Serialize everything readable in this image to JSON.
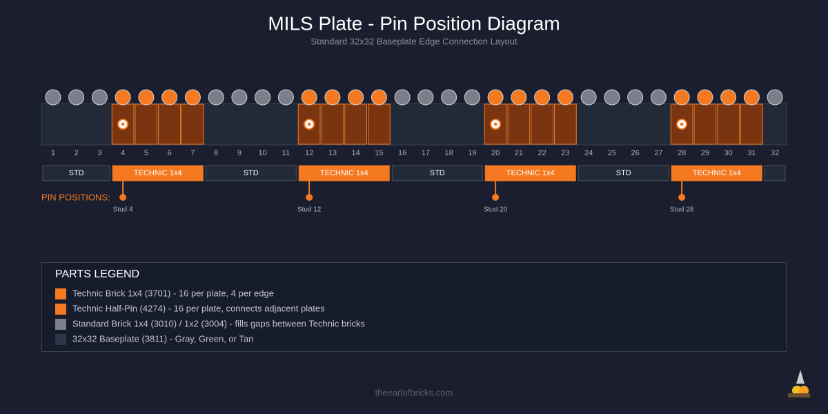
{
  "header": {
    "title": "MILS Plate - Pin Position Diagram",
    "subtitle": "Standard 32x32 Baseplate Edge Connection Layout"
  },
  "studs": [
    "1",
    "2",
    "3",
    "4",
    "5",
    "6",
    "7",
    "8",
    "9",
    "10",
    "11",
    "12",
    "13",
    "14",
    "15",
    "16",
    "17",
    "18",
    "19",
    "20",
    "21",
    "22",
    "23",
    "24",
    "25",
    "26",
    "27",
    "28",
    "29",
    "30",
    "31",
    "32"
  ],
  "segments": [
    "STD",
    "TECHNIC 1x4",
    "STD",
    "TECHNIC 1x4",
    "STD",
    "TECHNIC 1x4",
    "STD",
    "TECHNIC 1x4"
  ],
  "pins": {
    "label": "PIN POSITIONS:",
    "items": [
      "Stud 4",
      "Stud 12",
      "Stud 20",
      "Stud 28"
    ]
  },
  "legend": {
    "title": "PARTS LEGEND",
    "items": [
      {
        "text": "Technic Brick 1x4 (3701) - 16 per plate, 4 per edge",
        "color": "#f47920"
      },
      {
        "text": "Technic Half-Pin (4274) - 16 per plate, connects adjacent plates",
        "color": "#f47920"
      },
      {
        "text": "Standard Brick 1x4 (3010) / 1x2 (3004) - fills gaps between Technic bricks",
        "color": "#7a7f8a"
      },
      {
        "text": "32x32 Baseplate (3811) - Gray, Green, or Tan",
        "color": "#2e3748"
      }
    ]
  },
  "footer": "theearlofbricks.com"
}
